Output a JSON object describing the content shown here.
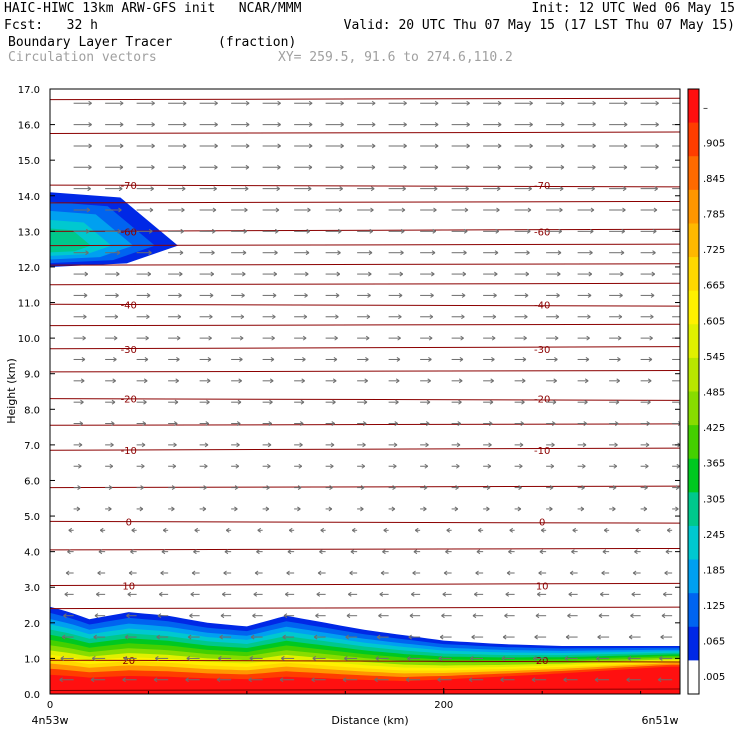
{
  "header": {
    "model_line": "HAIC-HIWC 13km ARW-GFS init   NCAR/MMM",
    "init_line": "Init: 12 UTC Wed 06 May 15",
    "fcst_line": "Fcst:   32 h",
    "valid_line": "Valid: 20 UTC Thu 07 May 15 (17 LST Thu 07 May 15)",
    "field_name": "Boundary Layer Tracer",
    "field_units": "(fraction)",
    "vector_name": "Circulation vectors",
    "xy_line": "XY= 259.5, 91.6 to 274.6,110.2"
  },
  "colors": {
    "temp_contour": "#8b0000",
    "vector": "#6e6e6e",
    "axis": "#000000"
  },
  "chart_data": {
    "type": "heatmap",
    "xlabel": "Distance (km)",
    "ylabel": "Height (km)",
    "xlim": [
      0,
      320
    ],
    "ylim": [
      0,
      17
    ],
    "x_ticks": [
      {
        "value": 0,
        "label": "0"
      },
      {
        "value": 200,
        "label": "200"
      }
    ],
    "x_end_labels": {
      "left": "4n53w",
      "right": "6n51w"
    },
    "y_ticks": [
      "0.0",
      "1.0",
      "2.0",
      "3.0",
      "4.0",
      "5.0",
      "6.0",
      "7.0",
      "8.0",
      "9.0",
      "10.0",
      "11.0",
      "12.0",
      "13.0",
      "14.0",
      "15.0",
      "16.0",
      "17.0"
    ],
    "colorbar": {
      "labels": [
        "–",
        ".905",
        ".845",
        ".785",
        ".725",
        ".665",
        ".605",
        ".545",
        ".485",
        ".425",
        ".365",
        ".305",
        ".245",
        ".185",
        ".125",
        ".065",
        ".005"
      ],
      "colors": [
        "#ff1010",
        "#ff3d00",
        "#ff6a00",
        "#ff9600",
        "#ffb800",
        "#ffd800",
        "#fff000",
        "#e0f000",
        "#b8e600",
        "#88dc00",
        "#44d000",
        "#00c820",
        "#00c88c",
        "#00c8d0",
        "#00a0f0",
        "#0064f0",
        "#0028e6",
        "#ffffff"
      ]
    },
    "tracer_layer": {
      "surface_top_km": [
        {
          "x": 0,
          "top": 2.45
        },
        {
          "x": 10,
          "top": 2.3
        },
        {
          "x": 20,
          "top": 2.1
        },
        {
          "x": 40,
          "top": 2.3
        },
        {
          "x": 60,
          "top": 2.2
        },
        {
          "x": 80,
          "top": 2.0
        },
        {
          "x": 100,
          "top": 1.9
        },
        {
          "x": 120,
          "top": 2.2
        },
        {
          "x": 140,
          "top": 2.0
        },
        {
          "x": 160,
          "top": 1.8
        },
        {
          "x": 180,
          "top": 1.65
        },
        {
          "x": 200,
          "top": 1.5
        },
        {
          "x": 230,
          "top": 1.4
        },
        {
          "x": 260,
          "top": 1.35
        },
        {
          "x": 300,
          "top": 1.35
        },
        {
          "x": 320,
          "top": 1.35
        }
      ],
      "elevated_blob_km": {
        "x_start": 0,
        "x_end": 65,
        "bottom": 12.0,
        "top": 14.1,
        "peak_height": 12.6
      }
    },
    "temperature_contours": [
      {
        "label": "-70",
        "height_km": 14.3
      },
      {
        "label": "-60",
        "height_km": 13.0
      },
      {
        "label": "-40",
        "height_km": 10.95
      },
      {
        "label": "-30",
        "height_km": 9.7
      },
      {
        "label": "-20",
        "height_km": 8.3
      },
      {
        "label": "-10",
        "height_km": 6.85
      },
      {
        "label": "0",
        "height_km": 4.85
      },
      {
        "label": "10",
        "height_km": 3.05
      },
      {
        "label": "20",
        "height_km": 0.95
      }
    ],
    "vector_field": {
      "upper_direction": "east",
      "lower_direction": "west",
      "transition_height_km": 5.0
    }
  }
}
